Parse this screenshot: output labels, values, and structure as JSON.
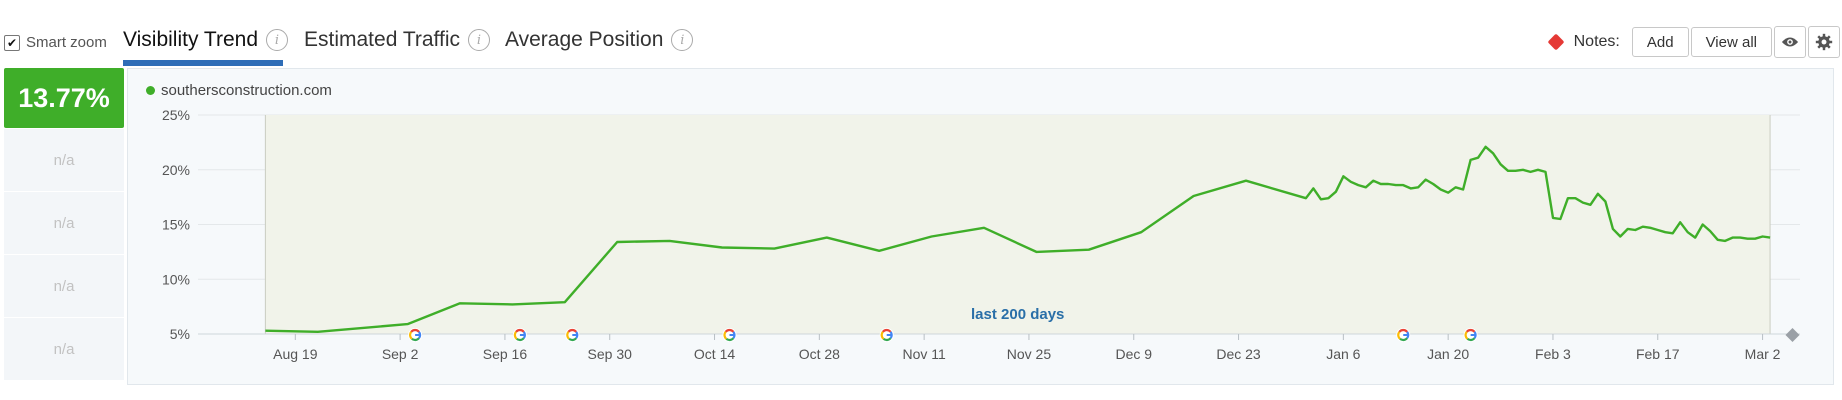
{
  "toolbar": {
    "smart_zoom_label": "Smart zoom",
    "smart_zoom_checked": true,
    "tabs": [
      {
        "label": "Visibility Trend",
        "active": true
      },
      {
        "label": "Estimated Traffic",
        "active": false
      },
      {
        "label": "Average Position",
        "active": false
      }
    ],
    "notes_label": "Notes:",
    "add_label": "Add",
    "view_all_label": "View all"
  },
  "summary": {
    "score": "13.77%",
    "rows": [
      "n/a",
      "n/a",
      "n/a",
      "n/a"
    ]
  },
  "colors": {
    "accent": "#3fae29",
    "tab_underline": "#2e6db7",
    "plot_band": "#f1f3ea",
    "range_label": "#2a6fa8",
    "note_marker": "#e53935"
  },
  "chart_data": {
    "type": "line",
    "series": [
      {
        "name": "southersconstruction.com",
        "color": "#3fae29",
        "points": [
          [
            "2019-08-15",
            5.3
          ],
          [
            "2019-08-22",
            5.2
          ],
          [
            "2019-09-03",
            5.9
          ],
          [
            "2019-09-10",
            7.8
          ],
          [
            "2019-09-17",
            7.7
          ],
          [
            "2019-09-24",
            7.9
          ],
          [
            "2019-10-01",
            13.4
          ],
          [
            "2019-10-08",
            13.5
          ],
          [
            "2019-10-15",
            12.9
          ],
          [
            "2019-10-22",
            12.8
          ],
          [
            "2019-10-29",
            13.8
          ],
          [
            "2019-11-05",
            12.6
          ],
          [
            "2019-11-12",
            13.9
          ],
          [
            "2019-11-19",
            14.7
          ],
          [
            "2019-11-26",
            12.5
          ],
          [
            "2019-12-03",
            12.7
          ],
          [
            "2019-12-10",
            14.3
          ],
          [
            "2019-12-17",
            17.6
          ],
          [
            "2019-12-24",
            19.0
          ],
          [
            "2020-01-01",
            17.4
          ],
          [
            "2020-01-02",
            18.3
          ],
          [
            "2020-01-03",
            17.3
          ],
          [
            "2020-01-04",
            17.4
          ],
          [
            "2020-01-05",
            18.0
          ],
          [
            "2020-01-06",
            19.4
          ],
          [
            "2020-01-07",
            18.9
          ],
          [
            "2020-01-08",
            18.6
          ],
          [
            "2020-01-09",
            18.4
          ],
          [
            "2020-01-10",
            19.0
          ],
          [
            "2020-01-11",
            18.7
          ],
          [
            "2020-01-12",
            18.7
          ],
          [
            "2020-01-13",
            18.6
          ],
          [
            "2020-01-14",
            18.6
          ],
          [
            "2020-01-15",
            18.3
          ],
          [
            "2020-01-16",
            18.4
          ],
          [
            "2020-01-17",
            19.1
          ],
          [
            "2020-01-18",
            18.7
          ],
          [
            "2020-01-19",
            18.2
          ],
          [
            "2020-01-20",
            17.9
          ],
          [
            "2020-01-21",
            18.4
          ],
          [
            "2020-01-22",
            18.2
          ],
          [
            "2020-01-23",
            20.9
          ],
          [
            "2020-01-24",
            21.1
          ],
          [
            "2020-01-25",
            22.1
          ],
          [
            "2020-01-26",
            21.5
          ],
          [
            "2020-01-27",
            20.5
          ],
          [
            "2020-01-28",
            19.9
          ],
          [
            "2020-01-29",
            19.9
          ],
          [
            "2020-01-30",
            20.0
          ],
          [
            "2020-01-31",
            19.8
          ],
          [
            "2020-02-01",
            20.0
          ],
          [
            "2020-02-02",
            19.8
          ],
          [
            "2020-02-03",
            15.6
          ],
          [
            "2020-02-04",
            15.5
          ],
          [
            "2020-02-05",
            17.4
          ],
          [
            "2020-02-06",
            17.4
          ],
          [
            "2020-02-07",
            17.0
          ],
          [
            "2020-02-08",
            16.8
          ],
          [
            "2020-02-09",
            17.8
          ],
          [
            "2020-02-10",
            17.1
          ],
          [
            "2020-02-11",
            14.6
          ],
          [
            "2020-02-12",
            13.9
          ],
          [
            "2020-02-13",
            14.6
          ],
          [
            "2020-02-14",
            14.5
          ],
          [
            "2020-02-15",
            14.8
          ],
          [
            "2020-02-16",
            14.7
          ],
          [
            "2020-02-17",
            14.5
          ],
          [
            "2020-02-18",
            14.3
          ],
          [
            "2020-02-19",
            14.2
          ],
          [
            "2020-02-20",
            15.2
          ],
          [
            "2020-02-21",
            14.3
          ],
          [
            "2020-02-22",
            13.8
          ],
          [
            "2020-02-23",
            15.0
          ],
          [
            "2020-02-24",
            14.4
          ],
          [
            "2020-02-25",
            13.6
          ],
          [
            "2020-02-26",
            13.5
          ],
          [
            "2020-02-27",
            13.8
          ],
          [
            "2020-02-28",
            13.8
          ],
          [
            "2020-02-29",
            13.7
          ],
          [
            "2020-03-01",
            13.7
          ],
          [
            "2020-03-02",
            13.9
          ],
          [
            "2020-03-03",
            13.8
          ]
        ]
      }
    ],
    "x_type": "date",
    "xlim": [
      "2019-08-15",
      "2020-03-03"
    ],
    "ylim": [
      5,
      25
    ],
    "y_ticks": [
      {
        "value": 5,
        "label": "5%"
      },
      {
        "value": 10,
        "label": "10%"
      },
      {
        "value": 15,
        "label": "15%"
      },
      {
        "value": 20,
        "label": "20%"
      },
      {
        "value": 25,
        "label": "25%"
      }
    ],
    "x_ticks": [
      {
        "date": "2019-08-19",
        "label": "Aug 19"
      },
      {
        "date": "2019-09-02",
        "label": "Sep 2"
      },
      {
        "date": "2019-09-16",
        "label": "Sep 16"
      },
      {
        "date": "2019-09-30",
        "label": "Sep 30"
      },
      {
        "date": "2019-10-14",
        "label": "Oct 14"
      },
      {
        "date": "2019-10-28",
        "label": "Oct 28"
      },
      {
        "date": "2019-11-11",
        "label": "Nov 11"
      },
      {
        "date": "2019-11-25",
        "label": "Nov 25"
      },
      {
        "date": "2019-12-09",
        "label": "Dec 9"
      },
      {
        "date": "2019-12-23",
        "label": "Dec 23"
      },
      {
        "date": "2020-01-06",
        "label": "Jan 6"
      },
      {
        "date": "2020-01-20",
        "label": "Jan 20"
      },
      {
        "date": "2020-02-03",
        "label": "Feb 3"
      },
      {
        "date": "2020-02-17",
        "label": "Feb 17"
      },
      {
        "date": "2020-03-02",
        "label": "Mar 2"
      }
    ],
    "google_update_markers": [
      "2019-09-04",
      "2019-09-18",
      "2019-09-25",
      "2019-10-16",
      "2019-11-06",
      "2020-01-14",
      "2020-01-23"
    ],
    "range_label": "last 200 days",
    "range_band": [
      "2019-08-15",
      "2020-03-03"
    ],
    "end_marker": "2020-03-06",
    "grid": true,
    "legend_position": "top-left"
  }
}
